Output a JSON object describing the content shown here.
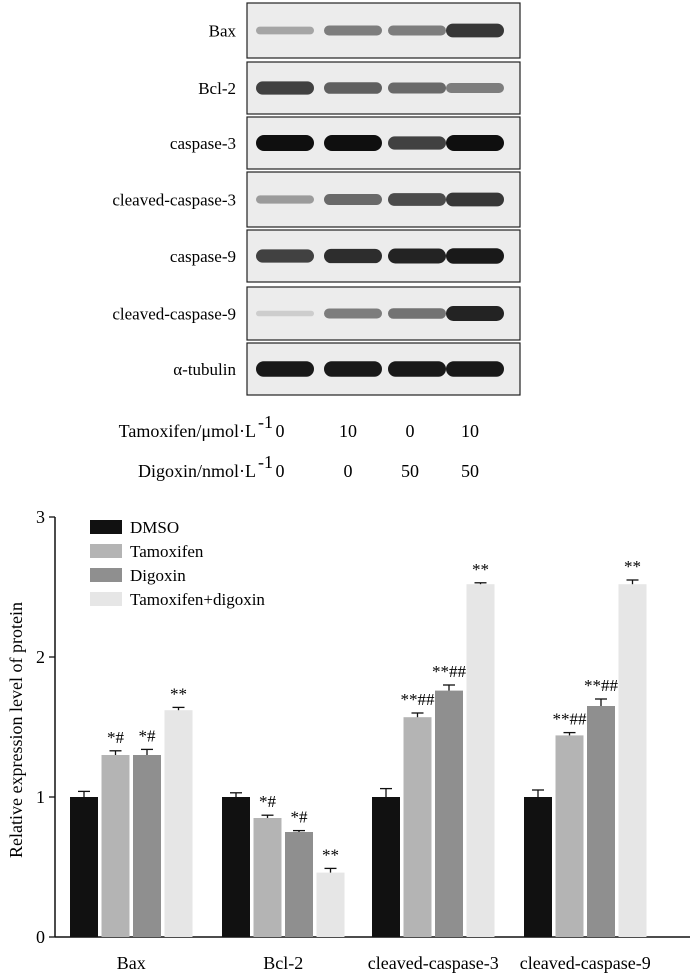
{
  "blot": {
    "rows": [
      {
        "label": "Bax",
        "intensity": [
          0.25,
          0.45,
          0.45,
          0.8
        ]
      },
      {
        "label": "Bcl-2",
        "intensity": [
          0.75,
          0.6,
          0.55,
          0.45
        ]
      },
      {
        "label": "caspase-3",
        "intensity": [
          1.0,
          1.0,
          0.75,
          1.0
        ]
      },
      {
        "label": "cleaved-caspase-3",
        "intensity": [
          0.3,
          0.55,
          0.7,
          0.8
        ]
      },
      {
        "label": "caspase-9",
        "intensity": [
          0.75,
          0.85,
          0.9,
          0.95
        ]
      },
      {
        "label": "cleaved-caspase-9",
        "intensity": [
          0.05,
          0.45,
          0.5,
          0.9
        ]
      },
      {
        "label": "α-tubulin",
        "intensity": [
          0.95,
          0.95,
          0.95,
          0.95
        ]
      }
    ],
    "conditions": [
      {
        "label": "Tamoxifen/μmol·L",
        "sup": "-1",
        "values": [
          "0",
          "10",
          "0",
          "10"
        ]
      },
      {
        "label": "Digoxin/nmol·L",
        "sup": "-1",
        "values": [
          "0",
          "0",
          "50",
          "50"
        ]
      }
    ]
  },
  "chart_data": {
    "type": "bar",
    "categories": [
      "Bax",
      "Bcl-2",
      "cleaved-caspase-3",
      "cleaved-caspase-9"
    ],
    "ylabel": "Relative expression level of protein",
    "ylim": [
      0,
      3
    ],
    "yticks": [
      "0",
      "1",
      "2",
      "3"
    ],
    "legend_position": "top-left",
    "series": [
      {
        "name": "DMSO",
        "color": "#111111",
        "values": [
          1.0,
          1.0,
          1.0,
          1.0
        ],
        "errors": [
          0.04,
          0.03,
          0.06,
          0.05
        ],
        "annotations": [
          "",
          "",
          "",
          ""
        ]
      },
      {
        "name": "Tamoxifen",
        "color": "#b4b4b4",
        "values": [
          1.3,
          0.85,
          1.57,
          1.44
        ],
        "errors": [
          0.03,
          0.02,
          0.03,
          0.02
        ],
        "annotations": [
          "*#",
          "*#",
          "**##",
          "**##"
        ]
      },
      {
        "name": "Digoxin",
        "color": "#8f8f8f",
        "values": [
          1.3,
          0.75,
          1.76,
          1.65
        ],
        "errors": [
          0.04,
          0.01,
          0.04,
          0.05
        ],
        "annotations": [
          "*#",
          "*#",
          "**##",
          "**##"
        ]
      },
      {
        "name": "Tamoxifen+digoxin",
        "color": "#e6e6e6",
        "values": [
          1.62,
          0.46,
          2.52,
          2.52
        ],
        "errors": [
          0.02,
          0.03,
          0.01,
          0.03
        ],
        "annotations": [
          "**",
          "**",
          "**",
          "**"
        ]
      }
    ]
  }
}
